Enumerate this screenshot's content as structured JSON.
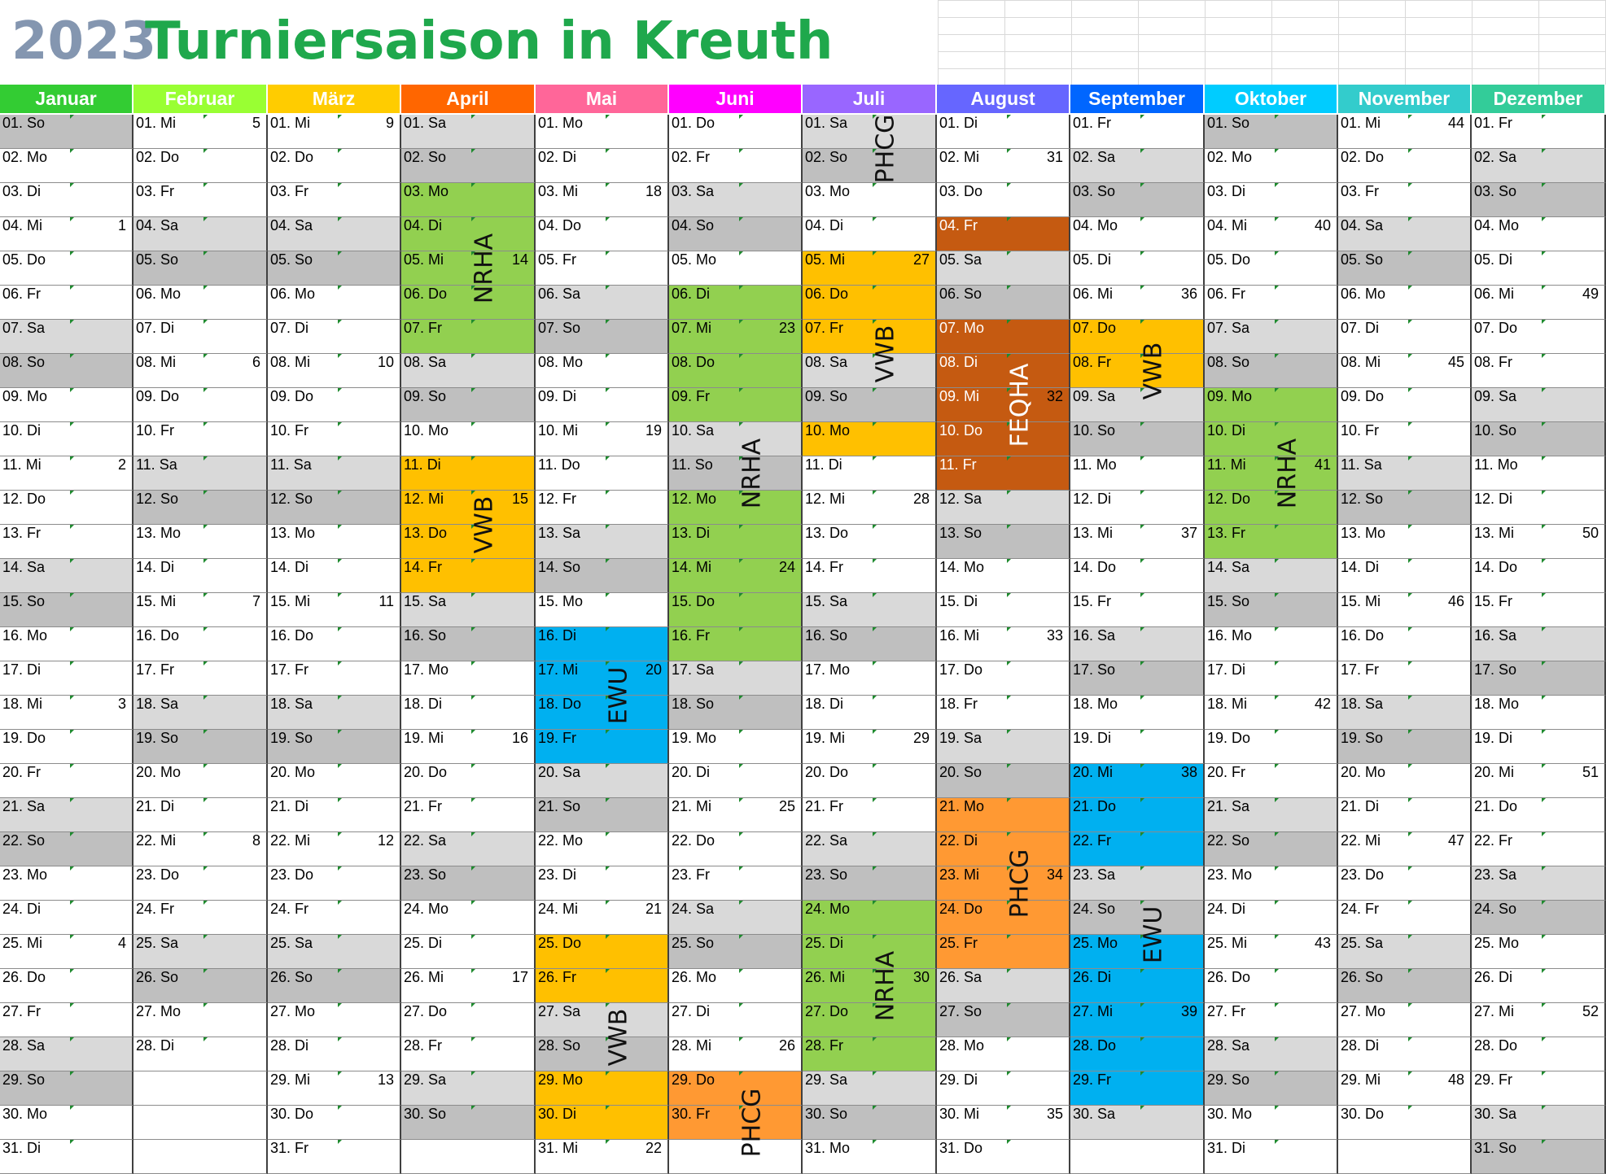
{
  "title": {
    "year": "2023",
    "text": "Turniersaison in Kreuth"
  },
  "months": [
    {
      "name": "Januar",
      "color": "#33cc33",
      "weekday0": 0,
      "days": 31
    },
    {
      "name": "Februar",
      "color": "#99ff33",
      "weekday0": 3,
      "days": 28
    },
    {
      "name": "März",
      "color": "#ffcc00",
      "weekday0": 3,
      "days": 31
    },
    {
      "name": "April",
      "color": "#ff6600",
      "weekday0": 6,
      "days": 30
    },
    {
      "name": "Mai",
      "color": "#ff6699",
      "weekday0": 1,
      "days": 31
    },
    {
      "name": "Juni",
      "color": "#ff00ff",
      "weekday0": 4,
      "days": 30
    },
    {
      "name": "Juli",
      "color": "#9966ff",
      "weekday0": 6,
      "days": 31
    },
    {
      "name": "August",
      "color": "#6666ff",
      "weekday0": 2,
      "days": 31
    },
    {
      "name": "September",
      "color": "#0066ff",
      "weekday0": 5,
      "days": 30
    },
    {
      "name": "Oktober",
      "color": "#00ccff",
      "weekday0": 0,
      "days": 31
    },
    {
      "name": "November",
      "color": "#33cccc",
      "weekday0": 3,
      "days": 30
    },
    {
      "name": "Dezember",
      "color": "#33cc99",
      "weekday0": 5,
      "days": 31
    }
  ],
  "weekday_names": [
    "So",
    "Mo",
    "Di",
    "Mi",
    "Do",
    "Fr",
    "Sa"
  ],
  "week_numbers": {
    "0": {
      "4": "1",
      "11": "2",
      "18": "3",
      "25": "4"
    },
    "1": {
      "1": "5",
      "8": "6",
      "15": "7",
      "22": "8"
    },
    "2": {
      "1": "9",
      "8": "10",
      "15": "11",
      "22": "12",
      "29": "13"
    },
    "3": {
      "5": "14",
      "12": "15",
      "19": "16",
      "26": "17"
    },
    "4": {
      "3": "18",
      "10": "19",
      "17": "20",
      "24": "21",
      "31": "22"
    },
    "5": {
      "7": "23",
      "14": "24",
      "21": "25",
      "28": "26"
    },
    "6": {
      "5": "27",
      "12": "28",
      "19": "29",
      "26": "30"
    },
    "7": {
      "2": "31",
      "9": "32",
      "16": "33",
      "23": "34",
      "30": "35"
    },
    "8": {
      "6": "36",
      "13": "37",
      "20": "38",
      "27": "39"
    },
    "9": {
      "4": "40",
      "11": "41",
      "18": "42",
      "25": "43"
    },
    "10": {
      "1": "44",
      "8": "45",
      "15": "46",
      "22": "47",
      "29": "48"
    },
    "11": {
      "6": "49",
      "13": "50",
      "20": "51",
      "27": "52"
    }
  },
  "events": [
    {
      "month": 3,
      "from": 3,
      "to": 7,
      "label": "NRHA",
      "color": "#92d050"
    },
    {
      "month": 3,
      "from": 11,
      "to": 14,
      "label": "VWB",
      "color": "#ffc000"
    },
    {
      "month": 4,
      "from": 16,
      "to": 19,
      "label": "EWU",
      "color": "#00b0f0"
    },
    {
      "month": 4,
      "from": 25,
      "to": 26,
      "label": "",
      "color": "#ffc000"
    },
    {
      "month": 4,
      "from": 29,
      "to": 30,
      "label": "",
      "color": "#ffc000"
    },
    {
      "month": 4,
      "from": 27,
      "to": 28,
      "label": "VWB",
      "color": "",
      "labelFrom": 25,
      "labelTo": 30
    },
    {
      "month": 5,
      "from": 6,
      "to": 9,
      "label": "",
      "color": "#92d050"
    },
    {
      "month": 5,
      "from": 10,
      "to": 11,
      "label": "NRHA",
      "color": "",
      "labelFrom": 6,
      "labelTo": 16
    },
    {
      "month": 5,
      "from": 12,
      "to": 16,
      "label": "",
      "color": "#92d050"
    },
    {
      "month": 5,
      "from": 29,
      "to": 30,
      "label": "PHCG",
      "color": "#ff9933",
      "labelTo": 31
    },
    {
      "month": 6,
      "from": 1,
      "to": 2,
      "label": "PHCG",
      "color": ""
    },
    {
      "month": 6,
      "from": 5,
      "to": 7,
      "label": "",
      "color": "#ffc000"
    },
    {
      "month": 6,
      "from": 10,
      "to": 10,
      "label": "",
      "color": "#ffc000"
    },
    {
      "month": 6,
      "from": 8,
      "to": 9,
      "label": "VWB",
      "color": "",
      "labelFrom": 5,
      "labelTo": 10
    },
    {
      "month": 6,
      "from": 24,
      "to": 28,
      "label": "NRHA",
      "color": "#92d050"
    },
    {
      "month": 7,
      "from": 4,
      "to": 4,
      "label": "",
      "color": "#c55a11"
    },
    {
      "month": 7,
      "from": 7,
      "to": 11,
      "label": "FEQHA",
      "color": "#c55a11"
    },
    {
      "month": 7,
      "from": 21,
      "to": 25,
      "label": "PHCG",
      "color": "#ff9933"
    },
    {
      "month": 8,
      "from": 7,
      "to": 8,
      "label": "",
      "color": "#ffc000"
    },
    {
      "month": 8,
      "from": 9,
      "to": 10,
      "label": "VWB",
      "color": "",
      "labelFrom": 7,
      "labelTo": 9
    },
    {
      "month": 8,
      "from": 20,
      "to": 22,
      "label": "",
      "color": "#00b0f0"
    },
    {
      "month": 8,
      "from": 23,
      "to": 24,
      "label": "EWU",
      "color": "",
      "labelFrom": 20,
      "labelTo": 29
    },
    {
      "month": 8,
      "from": 25,
      "to": 29,
      "label": "",
      "color": "#00b0f0"
    },
    {
      "month": 9,
      "from": 9,
      "to": 13,
      "label": "NRHA",
      "color": "#92d050"
    }
  ]
}
